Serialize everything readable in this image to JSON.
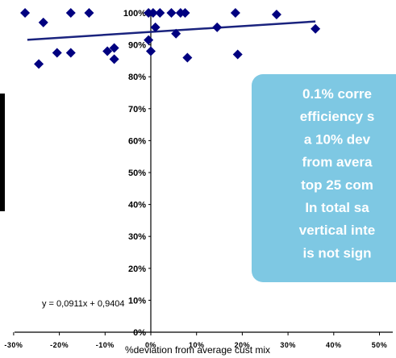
{
  "chart_data": {
    "type": "scatter",
    "title": "",
    "xlabel": "%deviation from average cust mix",
    "ylabel": "",
    "xlim": [
      -0.3,
      0.5
    ],
    "ylim": [
      0,
      1
    ],
    "x_ticks": [
      "-30%",
      "-20%",
      "-10%",
      "0%",
      "10%",
      "20%",
      "30%",
      "40%",
      "50%"
    ],
    "y_ticks": [
      "0%",
      "10%",
      "20%",
      "30%",
      "40%",
      "50%",
      "60%",
      "70%",
      "80%",
      "90%",
      "100%"
    ],
    "grid": false,
    "legend": "none",
    "points": [
      {
        "x": -0.275,
        "y": 1.0
      },
      {
        "x": -0.235,
        "y": 0.97
      },
      {
        "x": -0.175,
        "y": 1.0
      },
      {
        "x": -0.245,
        "y": 0.84
      },
      {
        "x": -0.205,
        "y": 0.875
      },
      {
        "x": -0.175,
        "y": 0.875
      },
      {
        "x": -0.135,
        "y": 1.0
      },
      {
        "x": -0.095,
        "y": 0.88
      },
      {
        "x": -0.08,
        "y": 0.89
      },
      {
        "x": -0.08,
        "y": 0.855
      },
      {
        "x": -0.005,
        "y": 1.0
      },
      {
        "x": 0.005,
        "y": 1.0
      },
      {
        "x": 0.02,
        "y": 1.0
      },
      {
        "x": 0.045,
        "y": 1.0
      },
      {
        "x": 0.065,
        "y": 1.0
      },
      {
        "x": 0.075,
        "y": 1.0
      },
      {
        "x": -0.005,
        "y": 0.915
      },
      {
        "x": 0.0,
        "y": 0.88
      },
      {
        "x": 0.01,
        "y": 0.955
      },
      {
        "x": 0.055,
        "y": 0.935
      },
      {
        "x": 0.08,
        "y": 0.86
      },
      {
        "x": 0.145,
        "y": 0.955
      },
      {
        "x": 0.185,
        "y": 1.0
      },
      {
        "x": 0.19,
        "y": 0.87
      },
      {
        "x": 0.275,
        "y": 0.995
      },
      {
        "x": 0.36,
        "y": 0.95
      }
    ],
    "trendline": {
      "slope": 0.0911,
      "intercept": 0.9404,
      "x_start": -0.27,
      "x_end": 0.36
    },
    "equation_label": "y = 0,0911x + 0,9404",
    "marker_color": "#000080",
    "line_color": "#1a237e",
    "callout": {
      "lines": [
        "0.1% corre",
        "efficiency s",
        "a 10% dev",
        "from avera",
        "top 25 com",
        "In total sa",
        "vertical inte",
        "is not sign"
      ],
      "fill": "#7ec8e3",
      "text_color": "#ffffff"
    }
  }
}
